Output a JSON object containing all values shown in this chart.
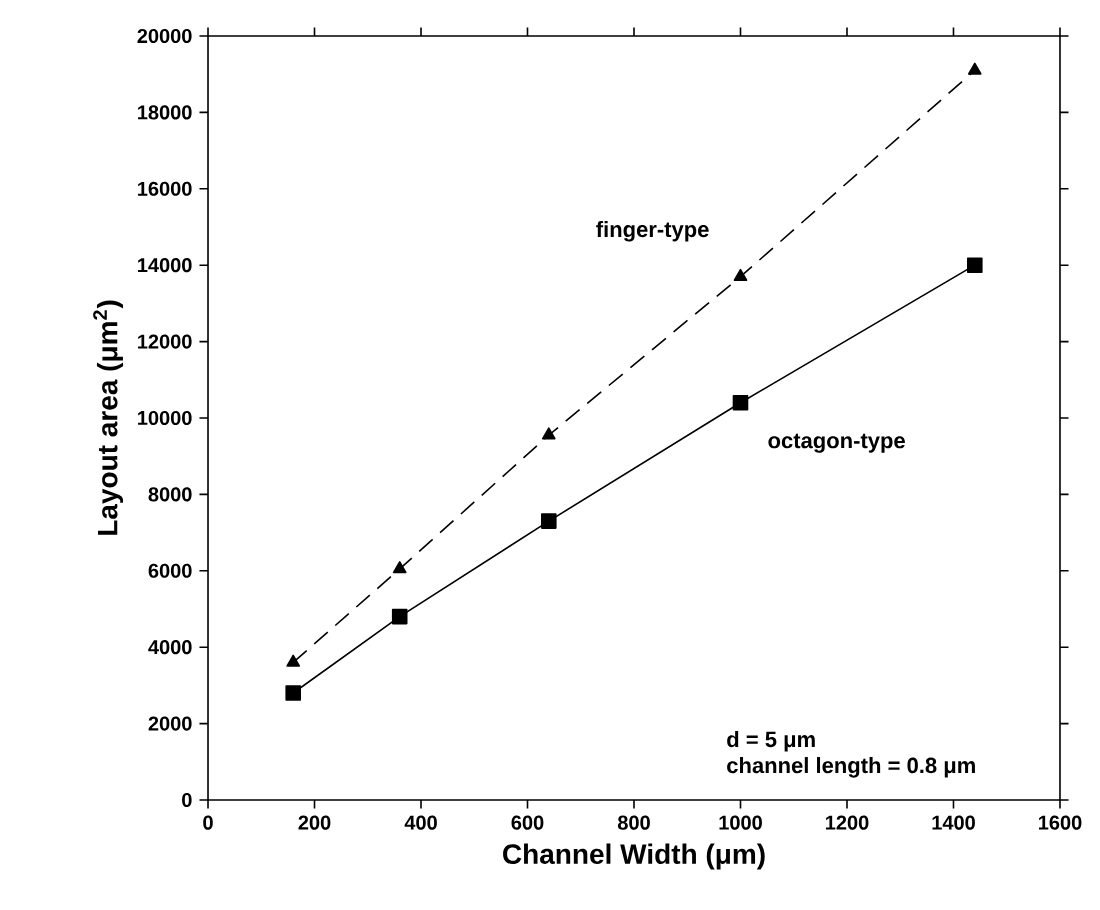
{
  "chart_data": {
    "type": "line",
    "xlabel": "Channel Width (μm)",
    "ylabel": "Layout area (μm$^{2}$)",
    "xlim": [
      0,
      1600
    ],
    "xticks": [
      0,
      200,
      400,
      600,
      800,
      1000,
      1200,
      1400,
      1600
    ],
    "ylim": [
      0,
      20000
    ],
    "yticks": [
      0,
      2000,
      4000,
      6000,
      8000,
      10000,
      12000,
      14000,
      16000,
      18000,
      20000
    ],
    "grid": false,
    "series": [
      {
        "name": "finger-type",
        "color": "#000000",
        "marker": "triangle",
        "line_style": "dashed",
        "x": [
          160,
          360,
          640,
          1000,
          1440
        ],
        "values": [
          3600,
          6050,
          9550,
          13700,
          19100
        ]
      },
      {
        "name": "octagon-type",
        "color": "#000000",
        "marker": "square",
        "line_style": "solid",
        "x": [
          160,
          360,
          640,
          1000,
          1440
        ],
        "values": [
          2800,
          4800,
          7300,
          10400,
          14000
        ]
      }
    ],
    "annotations": [
      "d = 5 μm",
      "channel length = 0.8 μm"
    ]
  }
}
